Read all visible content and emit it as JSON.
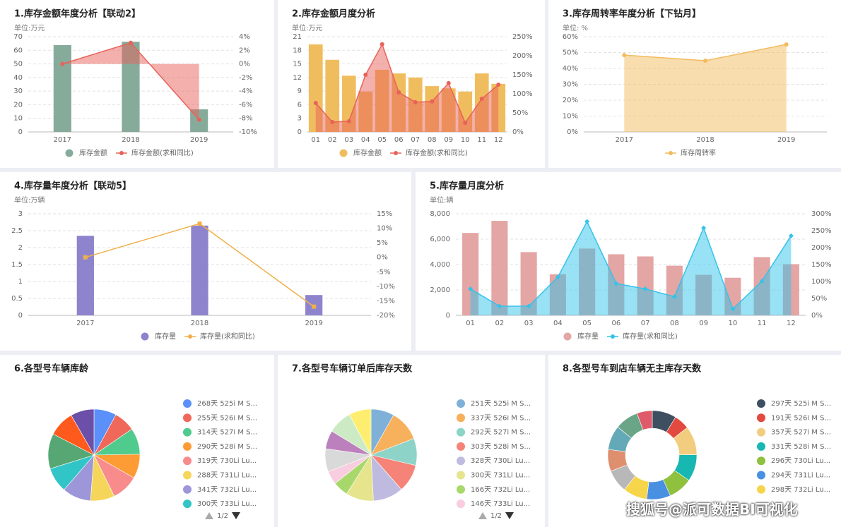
{
  "chart_data": [
    {
      "type": "combo",
      "title": "1.库存金额年度分析【联动2】",
      "unit_label": "单位:万元",
      "categories": [
        "2017",
        "2018",
        "2019"
      ],
      "series": [
        {
          "name": "库存金额",
          "color": "#86ab9b",
          "type": "bar",
          "values": [
            63.8,
            66.3,
            16.6
          ]
        },
        {
          "name": "库存金额(求和同比)",
          "color": "#e8625a",
          "type": "line",
          "axis": "y2",
          "area": true,
          "values": [
            0,
            3.1,
            -8.2
          ]
        }
      ],
      "ylim": [
        0,
        70
      ],
      "yticks": [
        0,
        10,
        20,
        30,
        40,
        50,
        60,
        70
      ],
      "y2lim": [
        -10,
        4
      ],
      "y2ticks": [
        {
          "value": -10,
          "label": "-10%"
        },
        {
          "value": -8,
          "label": "-8%"
        },
        {
          "value": -6,
          "label": "-6%"
        },
        {
          "value": -4,
          "label": "-4%"
        },
        {
          "value": -2,
          "label": "-2%"
        },
        {
          "value": 0,
          "label": "0%"
        },
        {
          "value": 2,
          "label": "2%"
        },
        {
          "value": 4,
          "label": "4%"
        }
      ],
      "grid": true
    },
    {
      "type": "combo",
      "title": "2.库存金额月度分析",
      "unit_label": "单位:万元",
      "categories": [
        "01",
        "02",
        "03",
        "04",
        "05",
        "06",
        "07",
        "08",
        "09",
        "10",
        "11",
        "12"
      ],
      "series": [
        {
          "name": "库存金额",
          "color": "#f0bd5e",
          "type": "bar",
          "values": [
            19.3,
            15.9,
            12.4,
            8.9,
            13.7,
            12.9,
            12.0,
            10.1,
            9.6,
            8.9,
            12.9,
            10.6
          ]
        },
        {
          "name": "库存金额(求和同比)",
          "color": "#e8625a",
          "type": "line",
          "axis": "y2",
          "area": true,
          "values": [
            76,
            26,
            28,
            150,
            230,
            104,
            78,
            80,
            128,
            24,
            87,
            124
          ]
        }
      ],
      "ylim": [
        0,
        21
      ],
      "yticks": [
        0,
        3,
        6,
        9,
        12,
        15,
        18,
        21
      ],
      "y2lim": [
        0,
        250
      ],
      "y2ticks": [
        {
          "value": 0,
          "label": "0%"
        },
        {
          "value": 50,
          "label": "50%"
        },
        {
          "value": 100,
          "label": "100%"
        },
        {
          "value": 150,
          "label": "150%"
        },
        {
          "value": 200,
          "label": "200%"
        },
        {
          "value": 250,
          "label": "250%"
        }
      ],
      "grid": true
    },
    {
      "type": "area",
      "title": "3.库存周转率年度分析【下钻月】",
      "unit_label": "单位: %",
      "categories": [
        "2017",
        "2018",
        "2019"
      ],
      "series": [
        {
          "name": "库存周转率",
          "color": "#f2bb5d",
          "type": "area",
          "values": [
            48.4,
            44.9,
            55.1
          ]
        }
      ],
      "ylim": [
        0,
        60
      ],
      "yticks": [
        {
          "value": 0,
          "label": "0%"
        },
        {
          "value": 10,
          "label": "10%"
        },
        {
          "value": 20,
          "label": "20%"
        },
        {
          "value": 30,
          "label": "30%"
        },
        {
          "value": 40,
          "label": "40%"
        },
        {
          "value": 50,
          "label": "50%"
        },
        {
          "value": 60,
          "label": "60%"
        }
      ],
      "grid": true
    },
    {
      "type": "combo",
      "title": "4.库存量年度分析【联动5】",
      "unit_label": "单位:万辆",
      "categories": [
        "2017",
        "2018",
        "2019"
      ],
      "series": [
        {
          "name": "库存量",
          "color": "#8e84cd",
          "type": "bar",
          "values": [
            2.35,
            2.65,
            0.6
          ]
        },
        {
          "name": "库存量(求和同比)",
          "color": "#f0b04a",
          "type": "line",
          "axis": "y2",
          "marker": "square",
          "values": [
            0,
            11.6,
            -17
          ]
        }
      ],
      "ylim": [
        0,
        3
      ],
      "yticks": [
        0,
        0.5,
        1,
        1.5,
        2,
        2.5,
        3
      ],
      "y2lim": [
        -20,
        15
      ],
      "y2ticks": [
        {
          "value": -20,
          "label": "-20%"
        },
        {
          "value": -15,
          "label": "-15%"
        },
        {
          "value": -10,
          "label": "-10%"
        },
        {
          "value": -5,
          "label": "-5%"
        },
        {
          "value": 0,
          "label": "0%"
        },
        {
          "value": 5,
          "label": "5%"
        },
        {
          "value": 10,
          "label": "10%"
        },
        {
          "value": 15,
          "label": "15%"
        }
      ],
      "grid": true
    },
    {
      "type": "combo",
      "title": "5.库存量月度分析",
      "unit_label": "单位:辆",
      "categories": [
        "01",
        "02",
        "03",
        "04",
        "05",
        "06",
        "07",
        "08",
        "09",
        "10",
        "11",
        "12"
      ],
      "series": [
        {
          "name": "库存量",
          "color": "#e4a5a5",
          "type": "bar",
          "values": [
            6490,
            7440,
            4980,
            3240,
            5260,
            4810,
            4640,
            3910,
            3190,
            2960,
            4590,
            4030
          ]
        },
        {
          "name": "库存量(求和同比)",
          "color": "#33c3ea",
          "type": "line",
          "axis": "y2",
          "area": true,
          "marker": "diamond",
          "values": [
            78,
            27,
            27,
            113,
            277,
            94,
            78,
            55,
            258,
            19,
            101,
            235
          ]
        }
      ],
      "ylim": [
        0,
        8000
      ],
      "yticks": [
        0,
        {
          "value": 2000,
          "label": "2,000"
        },
        {
          "value": 4000,
          "label": "4,000"
        },
        {
          "value": 6000,
          "label": "6,000"
        },
        {
          "value": 8000,
          "label": "8,000"
        }
      ],
      "y2lim": [
        0,
        300
      ],
      "y2ticks": [
        {
          "value": 0,
          "label": "0%"
        },
        {
          "value": 50,
          "label": "50%"
        },
        {
          "value": 100,
          "label": "100%"
        },
        {
          "value": 150,
          "label": "150%"
        },
        {
          "value": 200,
          "label": "200%"
        },
        {
          "value": 250,
          "label": "250%"
        },
        {
          "value": 300,
          "label": "300%"
        }
      ],
      "grid": true
    },
    {
      "type": "pie",
      "title": "6.各型号车辆库龄",
      "page_label": "1/2",
      "categories": [
        "268天 525i M S...",
        "255天 526i M S...",
        "314天 527i M S...",
        "290天 528i M S...",
        "319天 730Li Lu...",
        "288天 731Li Lu...",
        "341天 732Li Lu...",
        "300天 733Li Lu...",
        null,
        null,
        null
      ],
      "values": [
        268,
        255,
        314,
        290,
        319,
        288,
        341,
        300,
        420,
        310,
        280
      ],
      "colors": [
        "#5b8ff9",
        "#f0685a",
        "#4ecb8d",
        "#fd9c35",
        "#f88b8b",
        "#f6d65a",
        "#9d96d9",
        "#32c5c7",
        "#56a774",
        "#fe5a1d",
        "#6c4fa8"
      ]
    },
    {
      "type": "pie",
      "title": "7.各型号车辆订单后库存天数",
      "page_label": "1/2",
      "categories": [
        "251天 525i M S...",
        "337天 526i M S...",
        "292天 527i M S...",
        "303天 528i M S...",
        "328天 730Li Lu...",
        "300天 731Li Lu...",
        "166天 732Li Lu...",
        "146天 733Li Lu...",
        null,
        null,
        null,
        null
      ],
      "values": [
        251,
        337,
        292,
        303,
        328,
        300,
        166,
        146,
        250,
        200,
        260,
        240
      ],
      "colors": [
        "#7fb1d8",
        "#f7b05b",
        "#8dd3c7",
        "#f58377",
        "#bfbbe0",
        "#e6e48c",
        "#a8d86b",
        "#f9cde0",
        "#d9d9d9",
        "#bc80bd",
        "#ccebc5",
        "#ffed6f"
      ]
    },
    {
      "type": "donut",
      "title": "8.各型号车到店车辆无主库存天数",
      "categories": [
        "297天 525i M S...",
        "191天 526i M S...",
        "357天 527i M S...",
        "331天 528i M S...",
        "296天 730Li Lu...",
        "294天 731Li Lu...",
        "298天 732Li Lu...",
        null,
        null,
        null,
        null,
        null
      ],
      "values": [
        297,
        191,
        357,
        331,
        296,
        294,
        298,
        280,
        270,
        300,
        290,
        190
      ],
      "colors": [
        "#3d4f60",
        "#e2493f",
        "#f2cd7f",
        "#17b7b2",
        "#8fc03e",
        "#4a90e2",
        "#f7d54a",
        "#b8b8b8",
        "#de8f6e",
        "#64a9b7",
        "#6aa587",
        "#e05b6a"
      ]
    }
  ],
  "watermark": "搜狐号@派可数据BI可视化"
}
